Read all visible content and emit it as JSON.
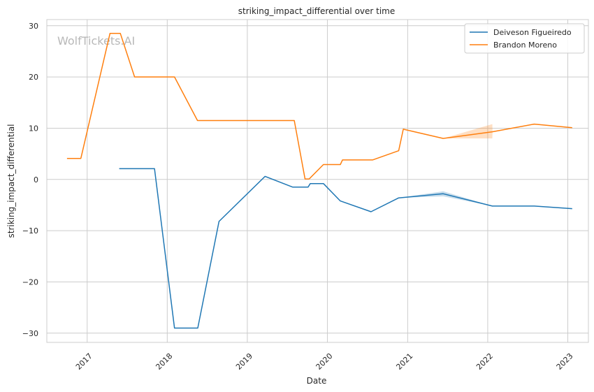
{
  "chart_data": {
    "type": "line",
    "title": "striking_impact_differential over time",
    "xlabel": "Date",
    "ylabel": "striking_impact_differential",
    "watermark": "WolfTickets.AI",
    "x_ticks": [
      "2017",
      "2018",
      "2019",
      "2020",
      "2021",
      "2022",
      "2023"
    ],
    "y_ticks": [
      30,
      20,
      10,
      0,
      -10,
      -20,
      -30
    ],
    "y_tick_labels": [
      "30",
      "20",
      "10",
      "0",
      "−10",
      "−20",
      "−30"
    ],
    "xlim": [
      "2016-07-01",
      "2023-04-05"
    ],
    "ylim": [
      -31.8,
      31.2
    ],
    "grid": true,
    "legend_position": "top-right",
    "series": [
      {
        "name": "Deiveson Figueiredo",
        "color": "#1f77b4",
        "points": [
          [
            "2017-05-27",
            2.1
          ],
          [
            "2017-11-04",
            2.1
          ],
          [
            "2018-02-03",
            -29.0
          ],
          [
            "2018-05-20",
            -29.0
          ],
          [
            "2018-08-25",
            -8.2
          ],
          [
            "2019-03-23",
            0.6
          ],
          [
            "2019-07-27",
            -1.5
          ],
          [
            "2019-10-05",
            -1.5
          ],
          [
            "2019-10-15",
            -0.8
          ],
          [
            "2019-12-14",
            -0.8
          ],
          [
            "2020-02-29",
            -4.2
          ],
          [
            "2020-07-18",
            -6.3
          ],
          [
            "2020-11-21",
            -3.6
          ],
          [
            "2021-06-12",
            -2.8
          ],
          [
            "2022-01-22",
            -5.2
          ],
          [
            "2022-08-01",
            -5.2
          ],
          [
            "2023-01-21",
            -5.7
          ]
        ],
        "band": [
          [
            "2020-11-21",
            -3.6,
            -3.6
          ],
          [
            "2021-06-12",
            -3.3,
            -2.3
          ],
          [
            "2022-01-22",
            -5.2,
            -5.2
          ]
        ]
      },
      {
        "name": "Brandon Moreno",
        "color": "#ff7f0e",
        "points": [
          [
            "2016-10-01",
            4.1
          ],
          [
            "2016-12-03",
            4.1
          ],
          [
            "2017-04-15",
            28.5
          ],
          [
            "2017-06-01",
            28.5
          ],
          [
            "2017-08-05",
            20.0
          ],
          [
            "2018-02-03",
            20.0
          ],
          [
            "2018-05-19",
            11.5
          ],
          [
            "2019-08-03",
            11.5
          ],
          [
            "2019-09-21",
            0.1
          ],
          [
            "2019-10-10",
            0.1
          ],
          [
            "2019-12-14",
            2.9
          ],
          [
            "2020-02-29",
            2.9
          ],
          [
            "2020-03-10",
            3.8
          ],
          [
            "2020-07-25",
            3.8
          ],
          [
            "2020-11-21",
            5.6
          ],
          [
            "2020-12-12",
            9.8
          ],
          [
            "2021-06-12",
            8.0
          ],
          [
            "2022-01-22",
            9.3
          ],
          [
            "2022-08-01",
            10.8
          ],
          [
            "2023-01-21",
            10.1
          ]
        ],
        "band": [
          [
            "2021-06-12",
            8.0,
            8.0
          ],
          [
            "2022-01-22",
            8.0,
            10.8
          ],
          [
            "2022-01-23",
            9.3,
            9.3
          ]
        ]
      }
    ]
  }
}
